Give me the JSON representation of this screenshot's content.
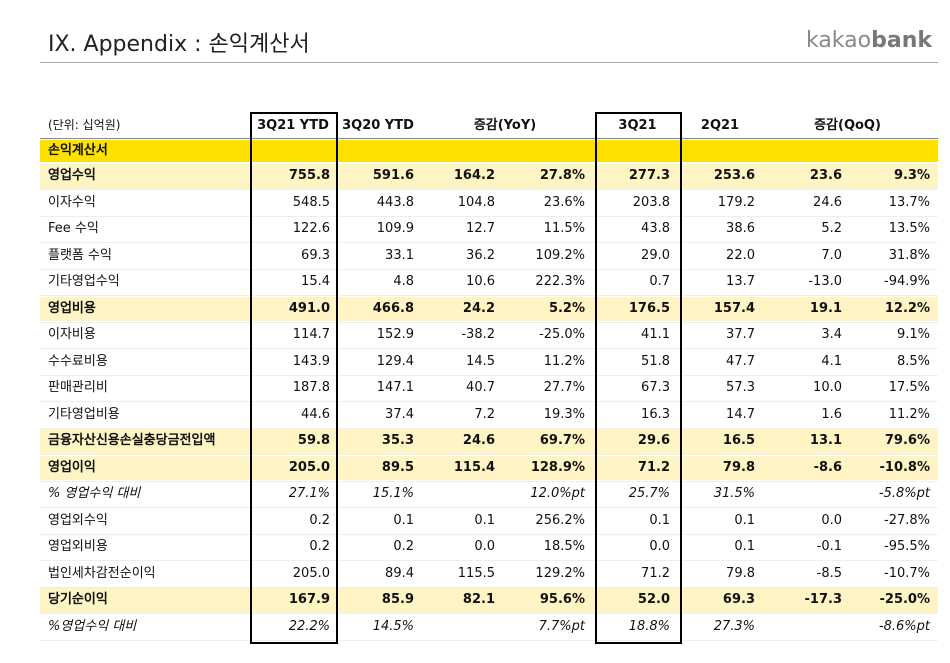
{
  "header": {
    "title": "IX. Appendix : 손익계산서",
    "logo_light": "kakao",
    "logo_bold": "bank"
  },
  "table": {
    "unit": "(단위: 십억원)",
    "columns": [
      "3Q21 YTD",
      "3Q20 YTD",
      "증감(YoY)",
      "3Q21",
      "2Q21",
      "증감(QoQ)"
    ],
    "section": "손익계산서",
    "rows": [
      [
        "영업수익",
        "755.8",
        "591.6",
        "164.2",
        "27.8%",
        "277.3",
        "253.6",
        "23.6",
        "9.3%"
      ],
      [
        "이자수익",
        "548.5",
        "443.8",
        "104.8",
        "23.6%",
        "203.8",
        "179.2",
        "24.6",
        "13.7%"
      ],
      [
        "Fee 수익",
        "122.6",
        "109.9",
        "12.7",
        "11.5%",
        "43.8",
        "38.6",
        "5.2",
        "13.5%"
      ],
      [
        "플랫폼 수익",
        "69.3",
        "33.1",
        "36.2",
        "109.2%",
        "29.0",
        "22.0",
        "7.0",
        "31.8%"
      ],
      [
        "기타영업수익",
        "15.4",
        "4.8",
        "10.6",
        "222.3%",
        "0.7",
        "13.7",
        "-13.0",
        "-94.9%"
      ],
      [
        "영업비용",
        "491.0",
        "466.8",
        "24.2",
        "5.2%",
        "176.5",
        "157.4",
        "19.1",
        "12.2%"
      ],
      [
        "이자비용",
        "114.7",
        "152.9",
        "-38.2",
        "-25.0%",
        "41.1",
        "37.7",
        "3.4",
        "9.1%"
      ],
      [
        "수수료비용",
        "143.9",
        "129.4",
        "14.5",
        "11.2%",
        "51.8",
        "47.7",
        "4.1",
        "8.5%"
      ],
      [
        "판매관리비",
        "187.8",
        "147.1",
        "40.7",
        "27.7%",
        "67.3",
        "57.3",
        "10.0",
        "17.5%"
      ],
      [
        "기타영업비용",
        "44.6",
        "37.4",
        "7.2",
        "19.3%",
        "16.3",
        "14.7",
        "1.6",
        "11.2%"
      ],
      [
        "금융자산신용손실충당금전입액",
        "59.8",
        "35.3",
        "24.6",
        "69.7%",
        "29.6",
        "16.5",
        "13.1",
        "79.6%"
      ],
      [
        "영업이익",
        "205.0",
        "89.5",
        "115.4",
        "128.9%",
        "71.2",
        "79.8",
        "-8.6",
        "-10.8%"
      ],
      [
        "% 영업수익 대비",
        "27.1%",
        "15.1%",
        null,
        "12.0%pt",
        "25.7%",
        "31.5%",
        null,
        "-5.8%pt"
      ],
      [
        "영업외수익",
        "0.2",
        "0.1",
        "0.1",
        "256.2%",
        "0.1",
        "0.1",
        "0.0",
        "-27.8%"
      ],
      [
        "영업외비용",
        "0.2",
        "0.2",
        "0.0",
        "18.5%",
        "0.0",
        "0.1",
        "-0.1",
        "-95.5%"
      ],
      [
        "법인세차감전순이익",
        "205.0",
        "89.4",
        "115.5",
        "129.2%",
        "71.2",
        "79.8",
        "-8.5",
        "-10.7%"
      ],
      [
        "당기순이익",
        "167.9",
        "85.9",
        "82.1",
        "95.6%",
        "52.0",
        "69.3",
        "-17.3",
        "-25.0%"
      ],
      [
        "%영업수익 대비",
        "22.2%",
        "14.5%",
        null,
        "7.7%pt",
        "18.8%",
        "27.3%",
        null,
        "-8.6%pt"
      ]
    ]
  }
}
